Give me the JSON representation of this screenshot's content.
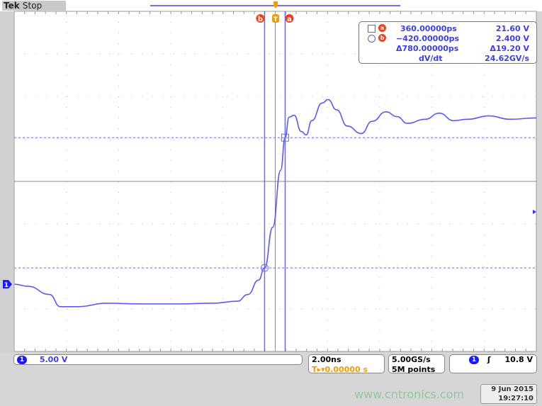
{
  "header": {
    "brand": "Tek",
    "status": "Stop"
  },
  "cursor_readout": {
    "a": {
      "label": "a",
      "time": "360.00000ps",
      "value": "21.60 V"
    },
    "b": {
      "label": "b",
      "time": "−420.00000ps",
      "value": "2.400 V"
    },
    "delta": {
      "time": "Δ780.00000ps",
      "value": "Δ19.20 V"
    },
    "rate": {
      "label": "dV/dt",
      "value": "24.62GV/s"
    }
  },
  "markers": {
    "cursor_a": "a",
    "cursor_b": "b",
    "trigger": "T",
    "channel": "1"
  },
  "footer": {
    "channel_badge": "1",
    "channel_scale": "5.00 V",
    "timebase": "2.00ns",
    "trigger_position": "0.00000 s",
    "sample_rate": "5.00GS/s",
    "record_length": "5M points",
    "trigger_channel": "1",
    "trigger_slope": "ʃ",
    "trigger_level": "10.8 V",
    "date": "9 Jun 2015",
    "time": "19:27:10"
  },
  "watermark": "www.cntronics.com",
  "colors": {
    "trace": "#5a5aff",
    "cursor": "#6a6aff",
    "badge": "#f0401a",
    "trigger": "#f59a00"
  },
  "chart_data": {
    "type": "line",
    "xlabel": "",
    "ylabel": "",
    "x_unit": "ns",
    "y_unit": "V",
    "xlim": [
      -9.92,
      9.89
    ],
    "ylim": [
      -9.9,
      40.2
    ],
    "grid": true,
    "cursors": {
      "a": {
        "t": 0.36,
        "v": 21.6
      },
      "b": {
        "t": -0.42,
        "v": 2.4
      }
    },
    "series": [
      {
        "points": [
          [
            -9.9,
            0.0
          ],
          [
            -9.4,
            -0.3
          ],
          [
            -8.58,
            -1.5
          ],
          [
            -8.17,
            -3.3
          ],
          [
            -7.5,
            -3.3
          ],
          [
            -6.42,
            -2.8
          ],
          [
            -5.08,
            -2.9
          ],
          [
            -3.74,
            -2.9
          ],
          [
            -2.39,
            -2.8
          ],
          [
            -1.45,
            -2.5
          ],
          [
            -1.05,
            -1.5
          ],
          [
            -0.65,
            0.6
          ],
          [
            -0.42,
            2.4
          ],
          [
            -0.11,
            8.4
          ],
          [
            0.19,
            16.8
          ],
          [
            0.36,
            21.6
          ],
          [
            0.51,
            24.6
          ],
          [
            0.7,
            24.9
          ],
          [
            0.97,
            22.5
          ],
          [
            1.16,
            22.0
          ],
          [
            1.37,
            24.1
          ],
          [
            1.77,
            26.7
          ],
          [
            1.99,
            27.2
          ],
          [
            2.31,
            25.7
          ],
          [
            2.72,
            23.3
          ],
          [
            3.25,
            22.2
          ],
          [
            3.66,
            24.0
          ],
          [
            4.19,
            25.4
          ],
          [
            4.6,
            24.7
          ],
          [
            5.0,
            23.7
          ],
          [
            5.67,
            24.3
          ],
          [
            6.21,
            25.2
          ],
          [
            6.75,
            24.1
          ],
          [
            7.28,
            24.3
          ],
          [
            8.09,
            24.8
          ],
          [
            8.9,
            24.3
          ],
          [
            9.89,
            24.5
          ]
        ]
      }
    ]
  }
}
